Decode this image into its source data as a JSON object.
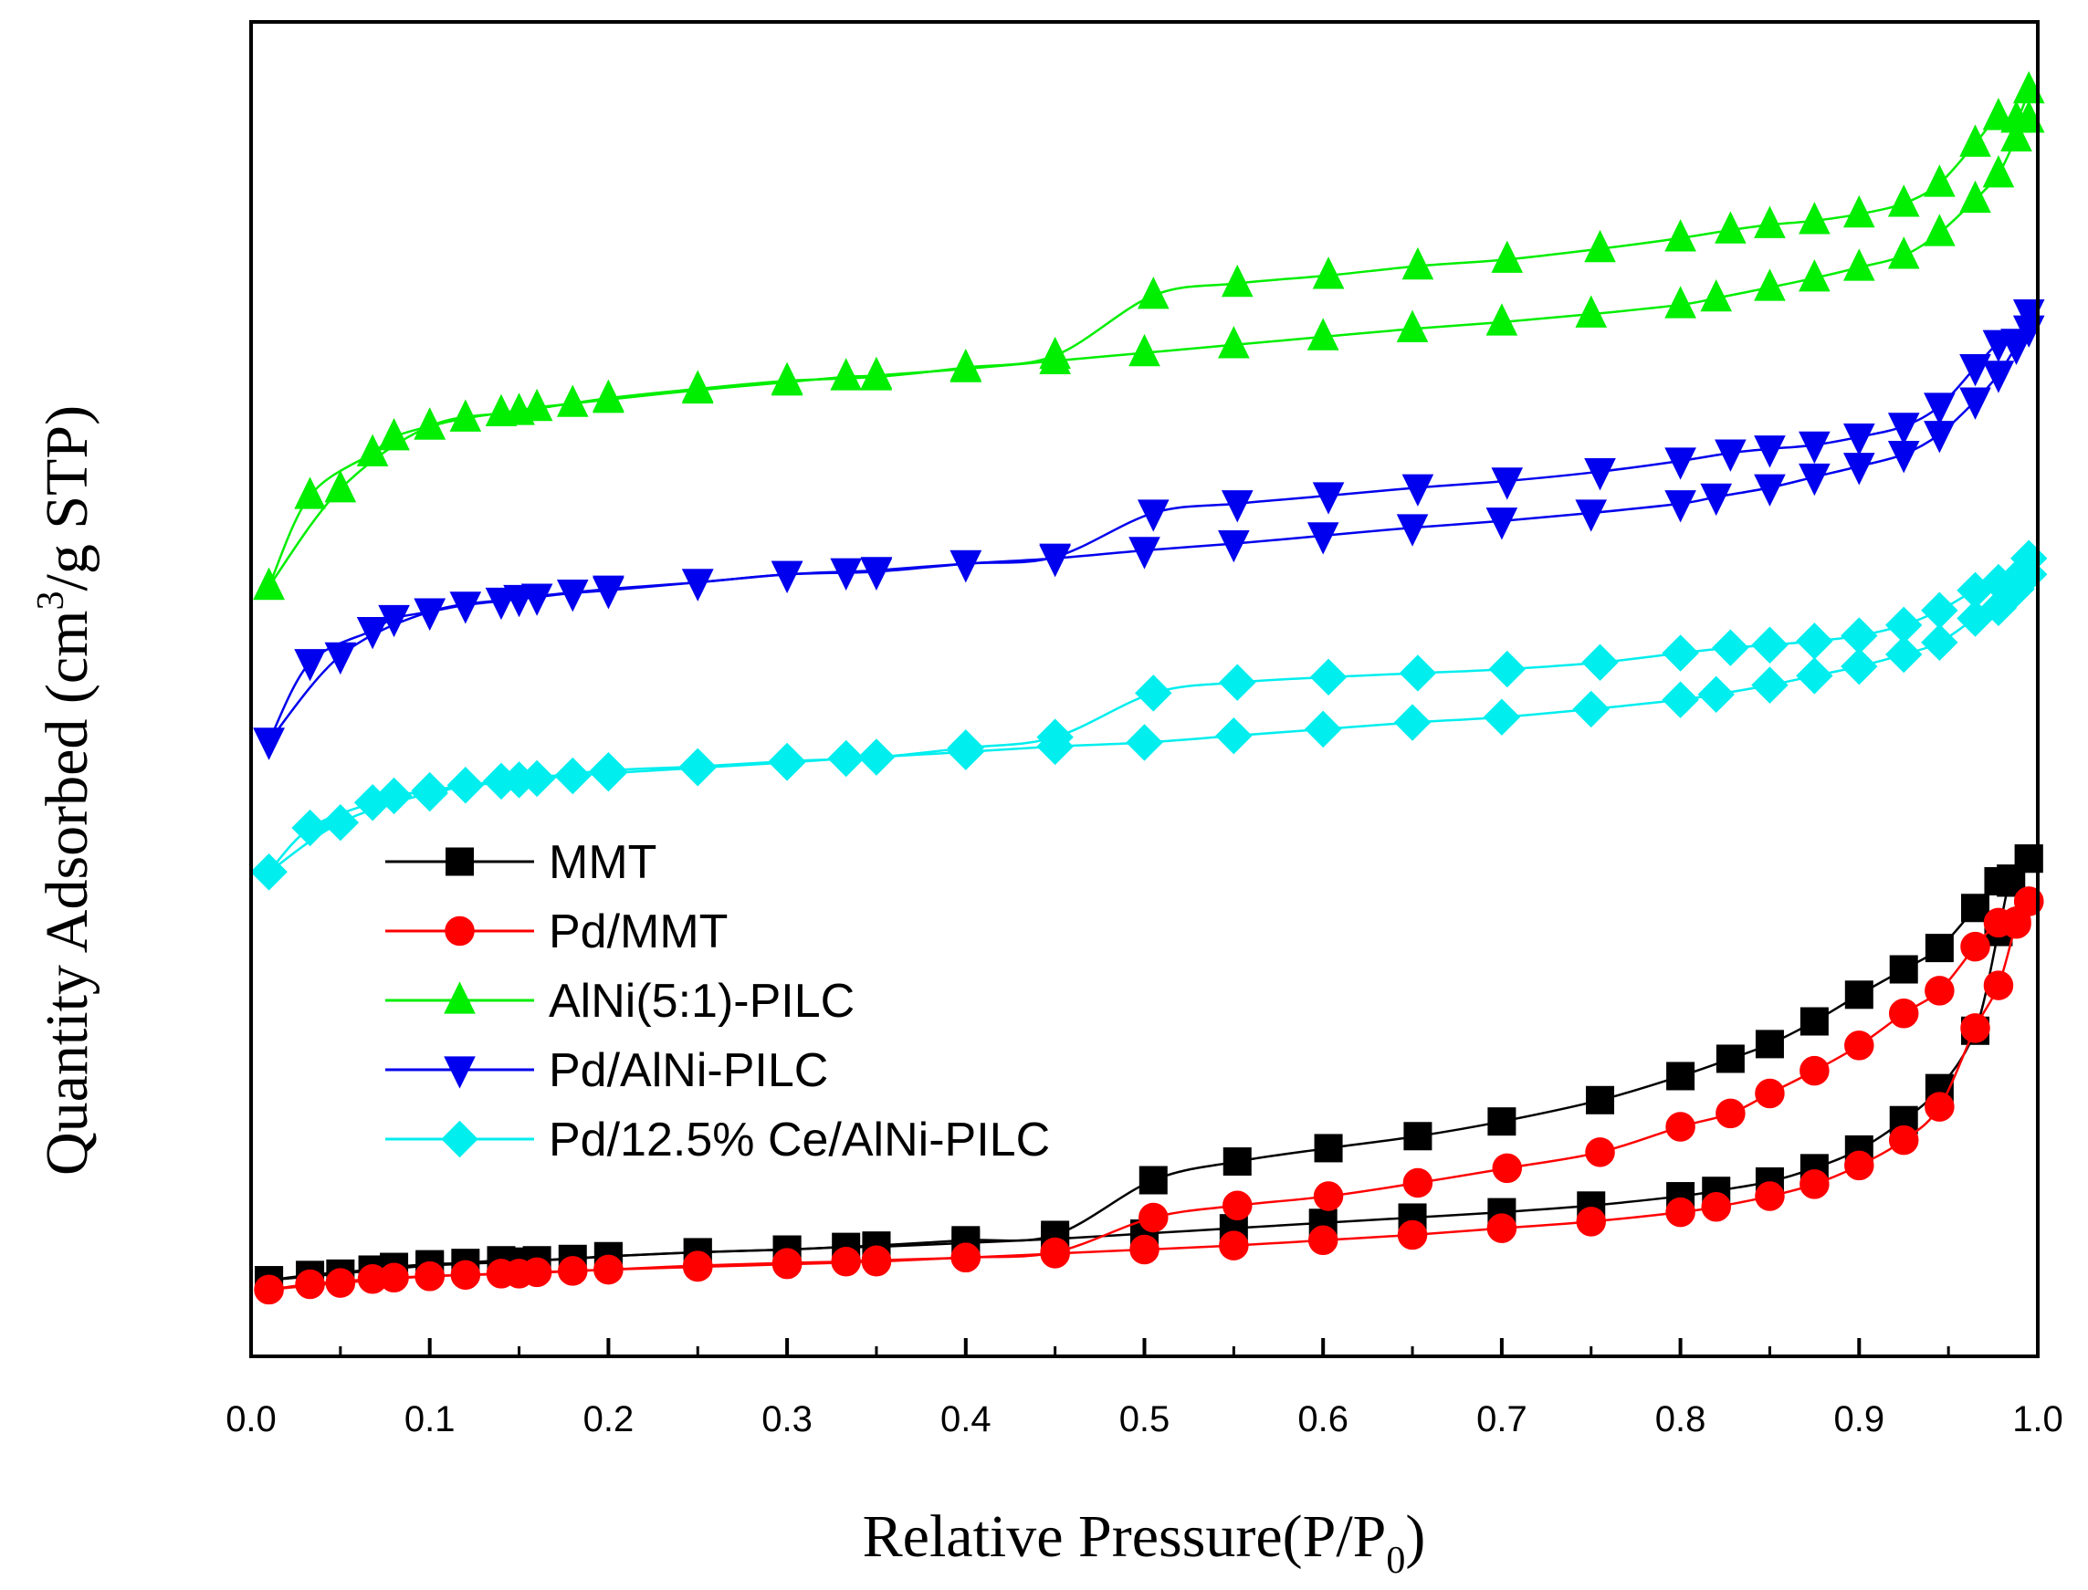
{
  "chart_data": {
    "type": "line",
    "xlabel": {
      "main": "Relative Pressure(P/P",
      "sub": "0",
      "close": ")"
    },
    "ylabel": {
      "pre": "Quantity Adsorbed (cm",
      "sup": "3",
      "post": "/g STP)"
    },
    "xlim": [
      0.0,
      1.0
    ],
    "ylim": [
      0,
      100
    ],
    "y_ticks_shown": false,
    "x_ticks": [
      0.0,
      0.1,
      0.2,
      0.3,
      0.4,
      0.5,
      0.6,
      0.7,
      0.8,
      0.9,
      1.0
    ],
    "x_tick_labels": [
      "0.0",
      "0.1",
      "0.2",
      "0.3",
      "0.4",
      "0.5",
      "0.6",
      "0.7",
      "0.8",
      "0.9",
      "1.0"
    ],
    "legend_position": "lower-left",
    "series": [
      {
        "name": "MMT",
        "color": "#000000",
        "marker": "square",
        "adsorption": {
          "x": [
            0.01,
            0.033,
            0.068,
            0.08,
            0.1,
            0.12,
            0.14,
            0.16,
            0.18,
            0.2,
            0.25,
            0.3,
            0.333,
            0.35,
            0.4,
            0.45,
            0.5,
            0.55,
            0.6,
            0.65,
            0.7,
            0.75,
            0.8,
            0.82,
            0.85,
            0.875,
            0.9,
            0.925,
            0.945,
            0.965,
            0.978,
            0.985,
            0.995
          ],
          "y": [
            5.7,
            6.1,
            6.5,
            6.7,
            6.9,
            7.0,
            7.2,
            7.2,
            7.3,
            7.5,
            7.8,
            8.0,
            8.2,
            8.2,
            8.5,
            8.8,
            9.2,
            9.6,
            10.0,
            10.4,
            10.8,
            11.3,
            12.0,
            12.4,
            13.1,
            14.1,
            15.5,
            17.7,
            20.1,
            24.4,
            31.8,
            35.8,
            37.3
          ]
        },
        "desorption": {
          "x": [
            0.995,
            0.985,
            0.978,
            0.965,
            0.945,
            0.925,
            0.9,
            0.875,
            0.85,
            0.828,
            0.8,
            0.755,
            0.7,
            0.653,
            0.603,
            0.552,
            0.505,
            0.45,
            0.4,
            0.35,
            0.3,
            0.25,
            0.2,
            0.15,
            0.1,
            0.05,
            0.01
          ],
          "y": [
            37.3,
            35.5,
            35.6,
            33.6,
            30.6,
            29.0,
            27.1,
            25.1,
            23.4,
            22.3,
            21.0,
            19.2,
            17.6,
            16.5,
            15.6,
            14.6,
            13.2,
            9.1,
            8.7,
            8.3,
            8.0,
            7.8,
            7.5,
            7.1,
            6.8,
            6.2,
            5.7
          ]
        }
      },
      {
        "name": "Pd/MMT",
        "color": "#ff0000",
        "marker": "circle",
        "adsorption": {
          "x": [
            0.01,
            0.033,
            0.068,
            0.08,
            0.1,
            0.12,
            0.14,
            0.16,
            0.18,
            0.2,
            0.25,
            0.3,
            0.333,
            0.35,
            0.4,
            0.45,
            0.5,
            0.55,
            0.6,
            0.65,
            0.7,
            0.75,
            0.8,
            0.82,
            0.85,
            0.875,
            0.9,
            0.925,
            0.945,
            0.965,
            0.978,
            0.988,
            0.995
          ],
          "y": [
            5.0,
            5.4,
            5.8,
            5.9,
            6.0,
            6.1,
            6.2,
            6.3,
            6.4,
            6.5,
            6.8,
            7.0,
            7.1,
            7.2,
            7.4,
            7.7,
            8.0,
            8.3,
            8.7,
            9.1,
            9.6,
            10.1,
            10.8,
            11.2,
            12.0,
            12.9,
            14.3,
            16.2,
            18.7,
            24.6,
            27.8,
            32.4,
            34.1
          ]
        },
        "desorption": {
          "x": [
            0.995,
            0.988,
            0.978,
            0.965,
            0.945,
            0.925,
            0.9,
            0.875,
            0.85,
            0.828,
            0.8,
            0.755,
            0.703,
            0.653,
            0.603,
            0.552,
            0.505,
            0.45,
            0.4,
            0.35,
            0.3,
            0.25,
            0.2,
            0.15,
            0.1,
            0.05,
            0.01
          ],
          "y": [
            34.1,
            32.6,
            32.5,
            30.7,
            27.4,
            25.7,
            23.3,
            21.4,
            19.7,
            18.2,
            17.2,
            15.3,
            14.1,
            13.0,
            12.0,
            11.3,
            10.4,
            7.8,
            7.4,
            7.1,
            6.9,
            6.7,
            6.5,
            6.2,
            6.0,
            5.5,
            5.0
          ]
        }
      },
      {
        "name": "AlNi(5:1)-PILC",
        "color": "#00ee00",
        "marker": "triangle-up",
        "adsorption": {
          "x": [
            0.01,
            0.033,
            0.068,
            0.08,
            0.1,
            0.12,
            0.14,
            0.16,
            0.18,
            0.2,
            0.25,
            0.3,
            0.333,
            0.35,
            0.4,
            0.45,
            0.5,
            0.55,
            0.6,
            0.65,
            0.7,
            0.75,
            0.8,
            0.82,
            0.85,
            0.875,
            0.9,
            0.925,
            0.945,
            0.965,
            0.978,
            0.988,
            0.995
          ],
          "y": [
            57.7,
            64.5,
            67.7,
            68.9,
            69.7,
            70.3,
            70.7,
            71.1,
            71.4,
            71.7,
            72.4,
            73.0,
            73.4,
            73.5,
            74.0,
            74.6,
            75.2,
            75.8,
            76.4,
            77.0,
            77.5,
            78.1,
            78.8,
            79.3,
            80.1,
            80.8,
            81.6,
            82.5,
            84.2,
            86.7,
            88.6,
            91.3,
            92.7
          ]
        },
        "desorption": {
          "x": [
            0.995,
            0.988,
            0.978,
            0.965,
            0.945,
            0.925,
            0.9,
            0.875,
            0.85,
            0.828,
            0.8,
            0.755,
            0.703,
            0.653,
            0.603,
            0.552,
            0.505,
            0.45,
            0.4,
            0.35,
            0.3,
            0.25,
            0.2,
            0.15,
            0.1,
            0.05,
            0.01
          ],
          "y": [
            94.9,
            92.7,
            92.9,
            90.9,
            87.9,
            86.4,
            85.6,
            85.1,
            84.8,
            84.4,
            83.8,
            83.0,
            82.2,
            81.7,
            81.0,
            80.4,
            79.5,
            75.0,
            74.1,
            73.4,
            73.1,
            72.5,
            71.8,
            70.8,
            69.7,
            65.0,
            57.7
          ]
        }
      },
      {
        "name": "Pd/AlNi-PILC",
        "color": "#0000ee",
        "marker": "triangle-down",
        "adsorption": {
          "x": [
            0.01,
            0.033,
            0.068,
            0.08,
            0.1,
            0.12,
            0.14,
            0.16,
            0.18,
            0.2,
            0.25,
            0.3,
            0.333,
            0.35,
            0.4,
            0.45,
            0.5,
            0.55,
            0.6,
            0.65,
            0.7,
            0.75,
            0.8,
            0.82,
            0.85,
            0.875,
            0.9,
            0.925,
            0.945,
            0.965,
            0.978,
            0.988,
            0.995
          ],
          "y": [
            46.1,
            52.0,
            54.4,
            55.3,
            55.8,
            56.3,
            56.6,
            56.9,
            57.2,
            57.4,
            58.0,
            58.6,
            58.8,
            58.9,
            59.4,
            59.8,
            60.4,
            60.9,
            61.5,
            62.1,
            62.6,
            63.2,
            63.9,
            64.4,
            65.1,
            65.9,
            66.7,
            67.6,
            69.1,
            71.6,
            73.6,
            75.7,
            77.0
          ]
        },
        "desorption": {
          "x": [
            0.995,
            0.988,
            0.978,
            0.965,
            0.945,
            0.925,
            0.9,
            0.875,
            0.85,
            0.828,
            0.8,
            0.755,
            0.703,
            0.653,
            0.603,
            0.552,
            0.505,
            0.45,
            0.4,
            0.35,
            0.3,
            0.25,
            0.2,
            0.15,
            0.1,
            0.05,
            0.01
          ],
          "y": [
            78.2,
            76.0,
            75.9,
            74.1,
            71.2,
            69.7,
            68.9,
            68.3,
            68.0,
            67.7,
            67.1,
            66.3,
            65.6,
            65.1,
            64.5,
            63.9,
            63.2,
            59.9,
            59.4,
            58.8,
            58.6,
            58.0,
            57.5,
            56.8,
            55.8,
            52.5,
            46.1
          ]
        }
      },
      {
        "name": "Pd/12.5% Ce/AlNi-PILC",
        "color": "#00eeee",
        "marker": "diamond",
        "adsorption": {
          "x": [
            0.01,
            0.033,
            0.068,
            0.08,
            0.1,
            0.12,
            0.14,
            0.16,
            0.18,
            0.2,
            0.25,
            0.3,
            0.333,
            0.35,
            0.4,
            0.45,
            0.5,
            0.55,
            0.6,
            0.65,
            0.7,
            0.75,
            0.8,
            0.82,
            0.85,
            0.875,
            0.9,
            0.925,
            0.945,
            0.965,
            0.978,
            0.988,
            0.995
          ],
          "y": [
            36.3,
            39.6,
            41.5,
            42.0,
            42.4,
            42.8,
            43.1,
            43.3,
            43.5,
            43.7,
            44.1,
            44.5,
            44.8,
            44.9,
            45.3,
            45.7,
            46.0,
            46.5,
            47.0,
            47.5,
            47.9,
            48.5,
            49.2,
            49.6,
            50.3,
            51.0,
            51.7,
            52.6,
            53.5,
            55.3,
            56.1,
            57.5,
            58.6
          ]
        },
        "desorption": {
          "x": [
            0.995,
            0.988,
            0.978,
            0.965,
            0.945,
            0.925,
            0.9,
            0.875,
            0.85,
            0.828,
            0.8,
            0.755,
            0.703,
            0.653,
            0.603,
            0.552,
            0.505,
            0.45,
            0.4,
            0.35,
            0.3,
            0.25,
            0.2,
            0.15,
            0.1,
            0.05,
            0.01
          ],
          "y": [
            59.8,
            58.3,
            58.0,
            57.4,
            55.9,
            54.8,
            54.0,
            53.6,
            53.3,
            53.1,
            52.7,
            52.0,
            51.5,
            51.2,
            50.9,
            50.5,
            49.7,
            46.4,
            45.6,
            44.9,
            44.6,
            44.2,
            43.9,
            43.2,
            42.2,
            40.0,
            36.3
          ]
        }
      }
    ]
  }
}
